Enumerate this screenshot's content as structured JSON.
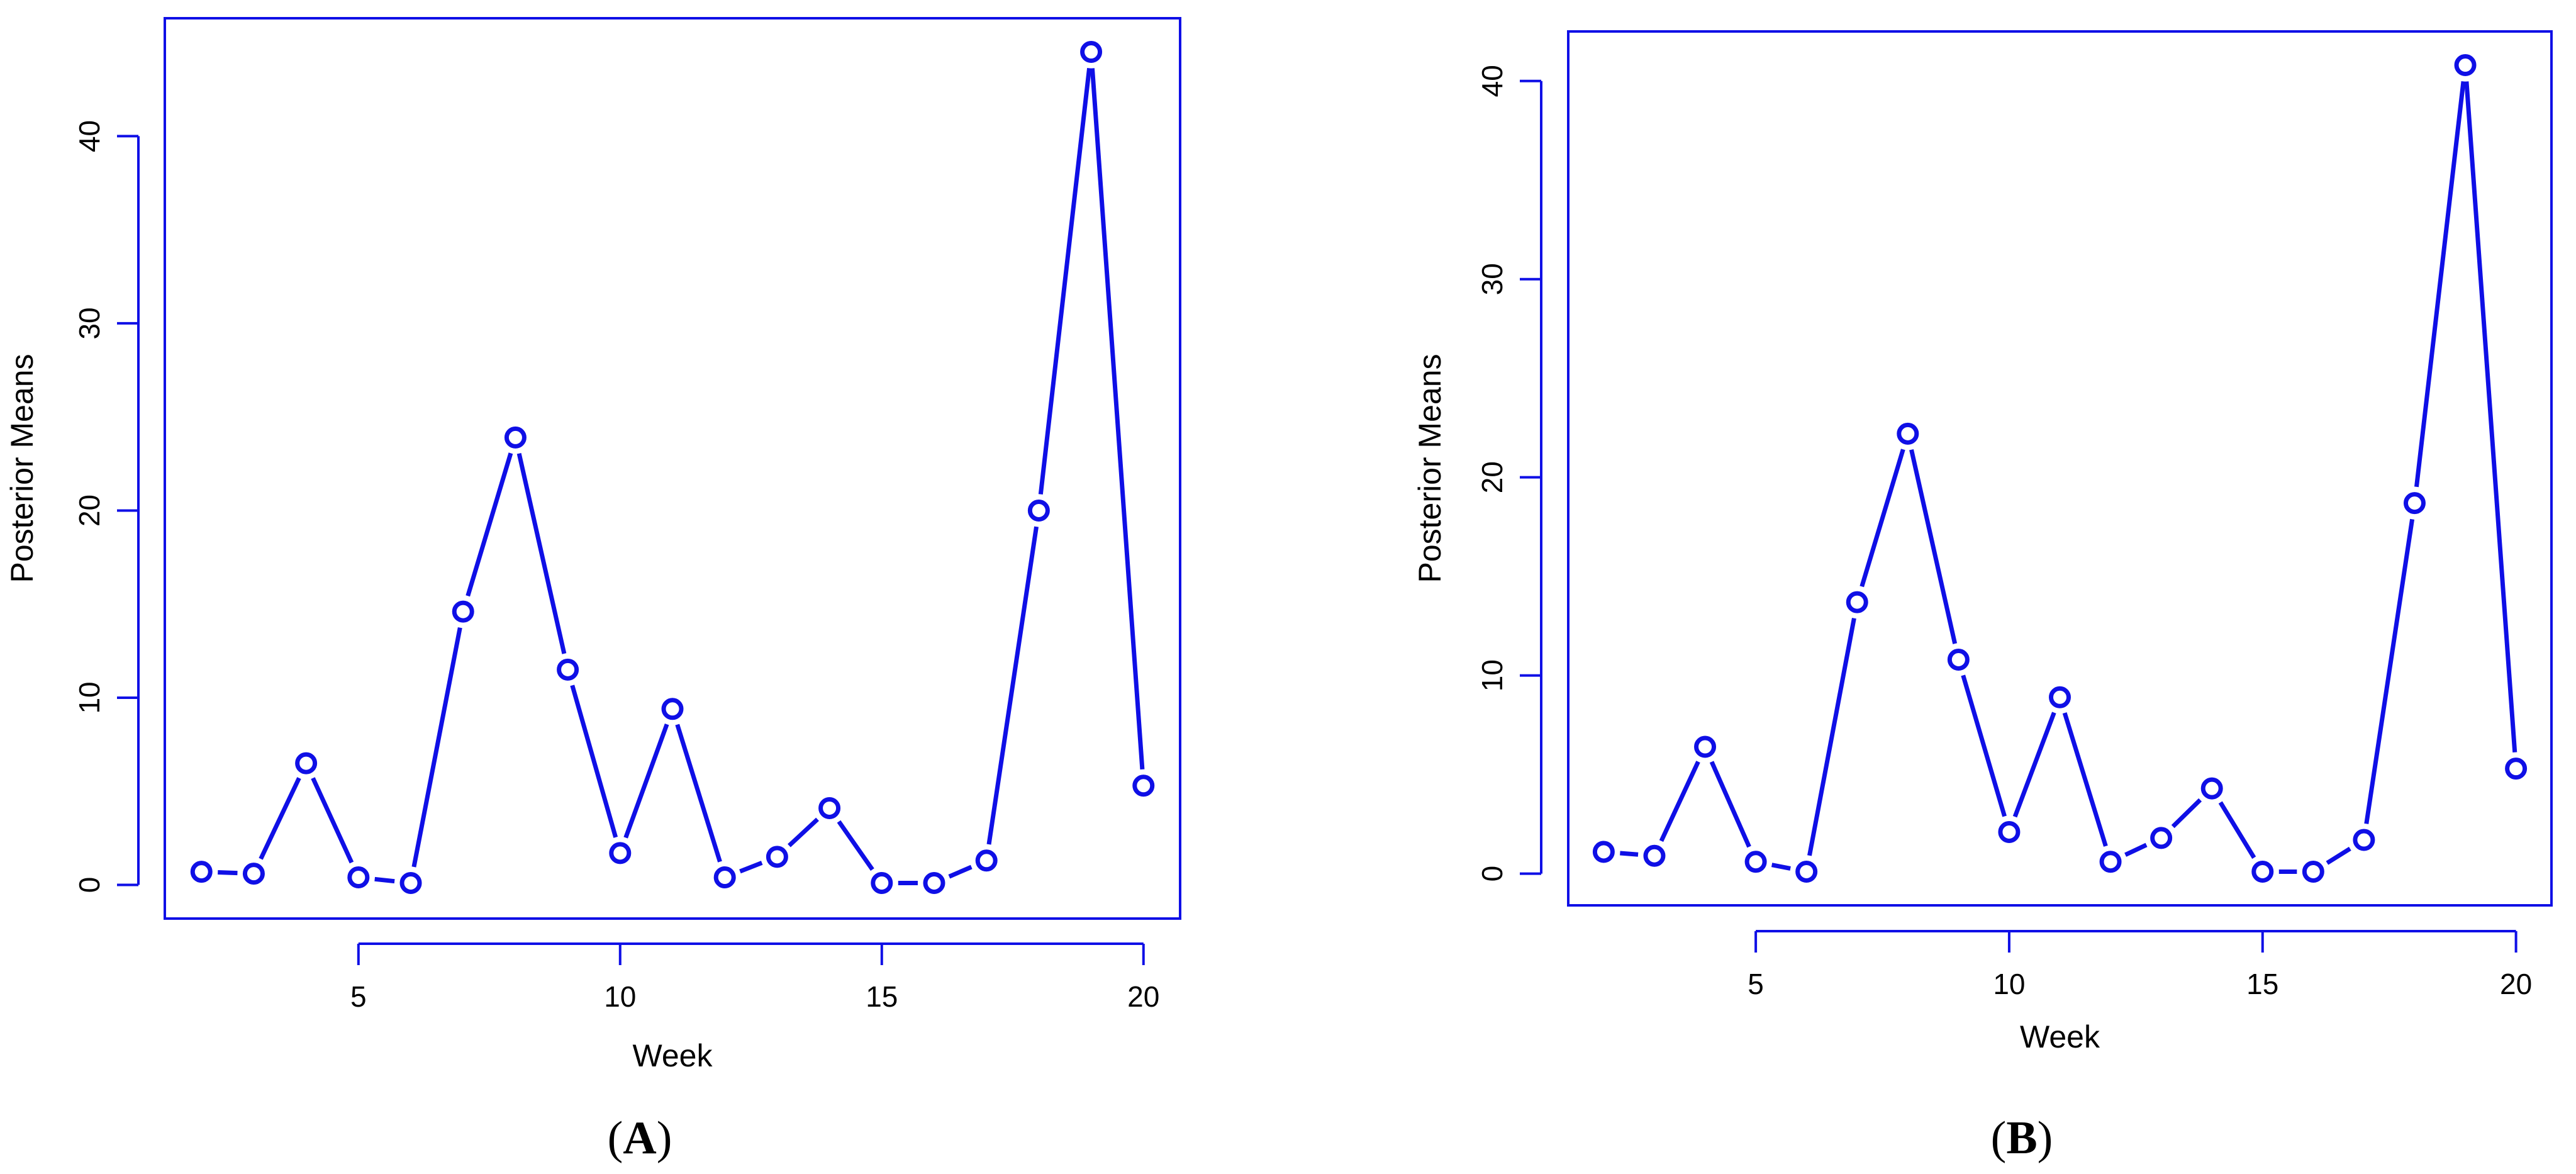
{
  "colors": {
    "series": "#0f0fe6",
    "axis": "#0f0fe6",
    "text": "#000000"
  },
  "chart_data": [
    {
      "type": "line",
      "panel_label": {
        "open": "(",
        "letter": "A",
        "close": ")"
      },
      "xlabel": "Week",
      "ylabel": "Posterior Means",
      "x": [
        2,
        3,
        4,
        5,
        6,
        7,
        8,
        9,
        10,
        11,
        12,
        13,
        14,
        15,
        16,
        17,
        18,
        19,
        20
      ],
      "values": [
        0.7,
        0.6,
        6.5,
        0.4,
        0.1,
        14.6,
        23.9,
        11.5,
        1.7,
        9.4,
        0.4,
        1.5,
        4.1,
        0.1,
        0.1,
        1.3,
        20.0,
        44.5,
        5.3
      ],
      "xticks": [
        5,
        10,
        15,
        20
      ],
      "yticks": [
        0,
        10,
        20,
        30,
        40
      ],
      "xlim": [
        1.3,
        20.7
      ],
      "ylim": [
        -1.8,
        46.3
      ],
      "marker": "open-circle",
      "grid": false
    },
    {
      "type": "line",
      "panel_label": {
        "open": "(",
        "letter": "B",
        "close": ")"
      },
      "xlabel": "Week",
      "ylabel": "Posterior Means",
      "x": [
        2,
        3,
        4,
        5,
        6,
        7,
        8,
        9,
        10,
        11,
        12,
        13,
        14,
        15,
        16,
        17,
        18,
        19,
        20
      ],
      "values": [
        1.1,
        0.9,
        6.4,
        0.6,
        0.1,
        13.7,
        22.2,
        10.8,
        2.1,
        8.9,
        0.6,
        1.8,
        4.3,
        0.1,
        0.1,
        1.7,
        18.7,
        40.8,
        5.3
      ],
      "xticks": [
        5,
        10,
        15,
        20
      ],
      "yticks": [
        0,
        10,
        20,
        30,
        40
      ],
      "xlim": [
        1.3,
        20.7
      ],
      "ylim": [
        -1.6,
        42.5
      ],
      "marker": "open-circle",
      "grid": false
    }
  ]
}
